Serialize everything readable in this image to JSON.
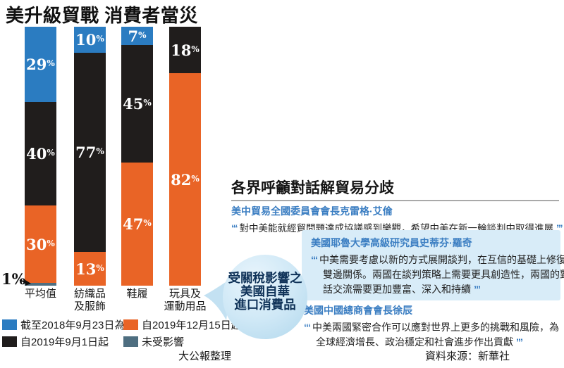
{
  "title": "美升級貿戰 消費者當災",
  "chart_data": {
    "type": "bar",
    "stacked": true,
    "unit": "%",
    "ylim": [
      0,
      100
    ],
    "grid": false,
    "legend_position": "bottom",
    "categories": [
      "平均值",
      "紡織品及服飾",
      "鞋履",
      "玩具及運動用品"
    ],
    "series": [
      {
        "name": "截至2018年9月23日為止",
        "color": "#2b7cc1",
        "values": [
          29,
          10,
          7,
          0
        ],
        "in_bar_labels": true
      },
      {
        "name": "自2019年9月1日起",
        "color": "#201d1c",
        "values": [
          40,
          77,
          45,
          18
        ],
        "in_bar_labels": true
      },
      {
        "name": "自2019年12月15日起",
        "color": "#e96426",
        "values": [
          30,
          13,
          47,
          82
        ],
        "in_bar_labels": true
      },
      {
        "name": "未受影響",
        "color": "#4e6e80",
        "values": [
          1,
          0,
          0,
          0
        ],
        "in_bar_labels": false,
        "outside_label": "1%"
      }
    ],
    "legend_order": [
      0,
      2,
      1,
      3
    ]
  },
  "callout": {
    "lines": [
      "受關稅影響之",
      "美國自華",
      "進口消費品"
    ],
    "bg": "#c9e4f3",
    "text_color": "#0f3258"
  },
  "panel": {
    "title": "各界呼籲對話解貿易分歧",
    "accent_color": "#3b7ec2",
    "highlight_bg": "#d8ecf8",
    "quotes": [
      {
        "speaker": "美中貿易全國委員會會長克雷格·艾倫",
        "text": "對中美能就經貿問題達成協議感到樂觀，希望中美在新一輪談判中取得進展"
      },
      {
        "speaker": "美國耶魯大學高級研究員史蒂芬·羅奇",
        "text": "中美需要考慮以新的方式展開談判，在互信的基礎上修復雙邊關係。兩國在談判策略上需要更具創造性，兩國的對話交流需要更加豐富、深入和持續",
        "highlighted": true
      },
      {
        "speaker": "美國中國總商會會長徐辰",
        "text": "中美兩國緊密合作可以應對世界上更多的挑戰和風險，為全球經濟增長、政治穩定和社會進步作出貢獻"
      }
    ]
  },
  "footer": {
    "credit": "大公報整理",
    "source": "資料來源：新華社"
  }
}
